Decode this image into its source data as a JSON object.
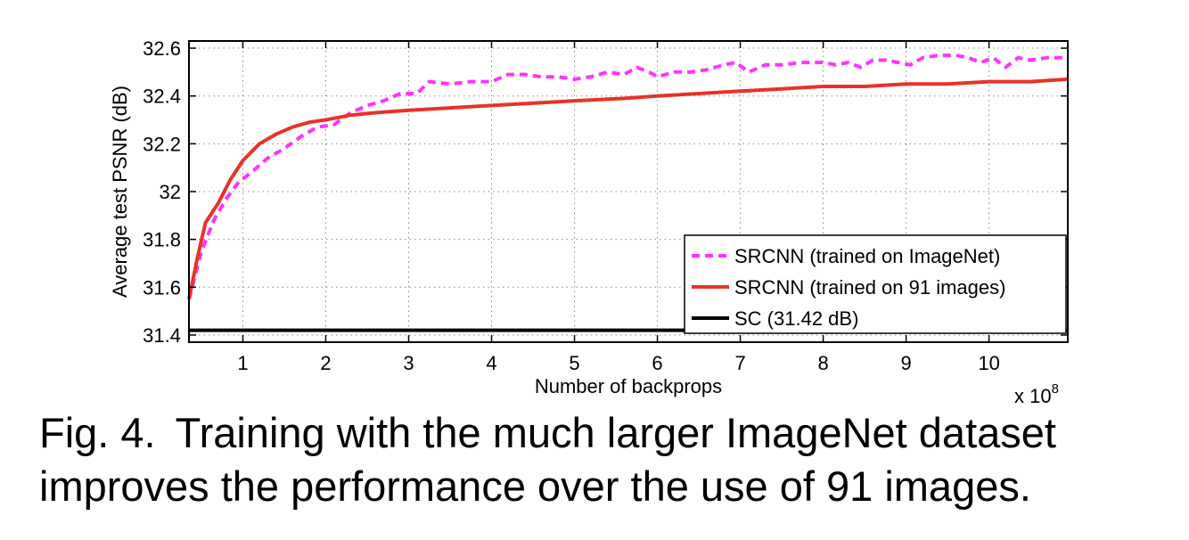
{
  "chart_data": {
    "type": "line",
    "title": "",
    "xlabel": "Number of backprops",
    "ylabel": "Average test PSNR (dB)",
    "x_multiplier_label": "x 10",
    "x_multiplier_exponent": "8",
    "xlim": [
      0.35,
      10.95
    ],
    "ylim": [
      31.37,
      32.63
    ],
    "xticks": [
      1,
      2,
      3,
      4,
      5,
      6,
      7,
      8,
      9,
      10
    ],
    "xtick_labels": [
      "1",
      "2",
      "3",
      "4",
      "5",
      "6",
      "7",
      "8",
      "9",
      "10"
    ],
    "yticks": [
      31.4,
      31.6,
      31.8,
      32.0,
      32.2,
      32.4,
      32.6
    ],
    "ytick_labels": [
      "31.4",
      "31.6",
      "31.8",
      "32",
      "32.2",
      "32.4",
      "32.6"
    ],
    "grid": true,
    "legend_position": "bottom-right",
    "series": [
      {
        "name": "SRCNN (trained on ImageNet)",
        "color": "#ff33ff",
        "style": "dashed",
        "x": [
          0.35,
          0.5,
          0.65,
          0.8,
          0.95,
          1.1,
          1.3,
          1.5,
          1.7,
          1.9,
          2.1,
          2.3,
          2.5,
          2.7,
          2.9,
          3.1,
          3.25,
          3.5,
          3.75,
          4.0,
          4.2,
          4.4,
          4.6,
          4.8,
          5.0,
          5.2,
          5.4,
          5.6,
          5.75,
          5.9,
          6.0,
          6.2,
          6.4,
          6.6,
          6.8,
          6.95,
          7.1,
          7.3,
          7.5,
          7.75,
          8.0,
          8.15,
          8.3,
          8.45,
          8.6,
          8.75,
          8.9,
          9.05,
          9.2,
          9.4,
          9.6,
          9.75,
          9.9,
          10.05,
          10.2,
          10.35,
          10.5,
          10.7,
          10.9
        ],
        "values": [
          31.55,
          31.75,
          31.88,
          31.97,
          32.04,
          32.08,
          32.14,
          32.18,
          32.23,
          32.27,
          32.28,
          32.33,
          32.36,
          32.38,
          32.41,
          32.41,
          32.46,
          32.45,
          32.46,
          32.46,
          32.49,
          32.49,
          32.48,
          32.48,
          32.47,
          32.48,
          32.5,
          32.49,
          32.52,
          32.5,
          32.48,
          32.5,
          32.5,
          32.51,
          32.53,
          32.54,
          32.5,
          32.53,
          32.53,
          32.54,
          32.54,
          32.53,
          32.54,
          32.52,
          32.55,
          32.55,
          32.54,
          32.53,
          32.56,
          32.57,
          32.57,
          32.56,
          32.54,
          32.56,
          32.52,
          32.56,
          32.55,
          32.56,
          32.56
        ]
      },
      {
        "name": "SRCNN (trained on 91 images)",
        "color": "#e8322a",
        "style": "solid",
        "x": [
          0.35,
          0.45,
          0.55,
          0.7,
          0.85,
          1.0,
          1.2,
          1.4,
          1.6,
          1.8,
          2.0,
          2.3,
          2.6,
          3.0,
          3.5,
          4.0,
          4.5,
          5.0,
          5.6,
          6.0,
          6.5,
          7.0,
          7.5,
          8.0,
          8.5,
          9.0,
          9.5,
          10.0,
          10.5,
          10.95
        ],
        "values": [
          31.55,
          31.72,
          31.87,
          31.95,
          32.05,
          32.13,
          32.2,
          32.24,
          32.27,
          32.29,
          32.3,
          32.32,
          32.33,
          32.34,
          32.35,
          32.36,
          32.37,
          32.38,
          32.39,
          32.4,
          32.41,
          32.42,
          32.43,
          32.44,
          32.44,
          32.45,
          32.45,
          32.46,
          32.46,
          32.47
        ]
      },
      {
        "name": "SC (31.42 dB)",
        "color": "#000000",
        "style": "solid",
        "x": [
          0.35,
          10.95
        ],
        "values": [
          31.42,
          31.42
        ]
      }
    ]
  },
  "caption": {
    "fig_label": "Fig. 4.",
    "line1": "Training with the much larger ImageNet dataset",
    "line2": "improves the performance over the use of 91 images."
  }
}
